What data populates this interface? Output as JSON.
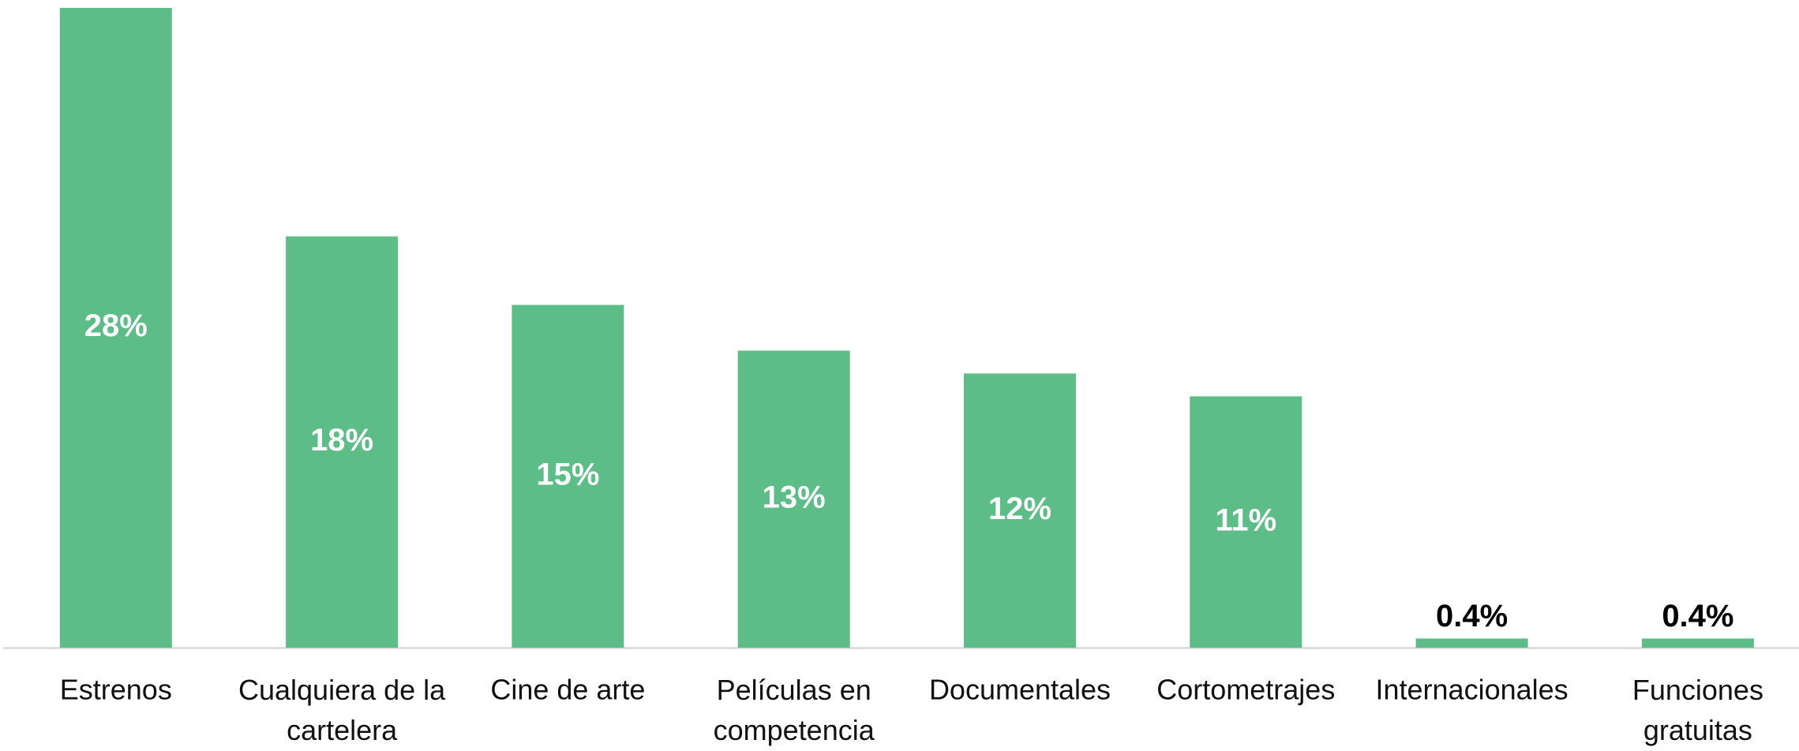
{
  "chart_data": {
    "type": "bar",
    "categories": [
      "Estrenos",
      "Cualquiera de la cartelera",
      "Cine de arte",
      "Películas en competencia",
      "Documentales",
      "Cortometrajes",
      "Internacionales",
      "Funciones gratuitas"
    ],
    "values": [
      28,
      18,
      15,
      13,
      12,
      11,
      0.4,
      0.4
    ],
    "value_labels": [
      "28%",
      "18%",
      "15%",
      "13%",
      "12%",
      "11%",
      "0.4%",
      "0.4%"
    ],
    "color": "#5cbd86"
  }
}
